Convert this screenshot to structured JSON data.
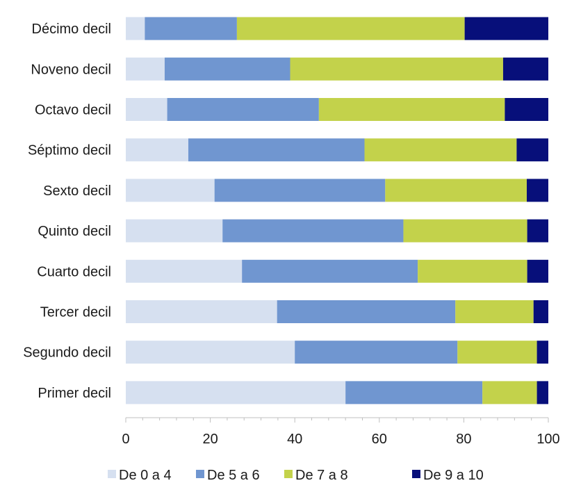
{
  "chart_data": {
    "type": "bar",
    "orientation": "horizontal",
    "stacked": true,
    "categories": [
      "Décimo decil",
      "Noveno decil",
      "Octavo decil",
      "Séptimo decil",
      "Sexto decil",
      "Quinto decil",
      "Cuarto decil",
      "Tercer decil",
      "Segundo decil",
      "Primer decil"
    ],
    "series": [
      {
        "name": "De 0 a 4",
        "color": "#d6e0f0",
        "values": [
          4.5,
          9.2,
          9.8,
          14.8,
          21.0,
          22.9,
          27.5,
          35.8,
          40.0,
          52.0
        ]
      },
      {
        "name": "De 5 a 6",
        "color": "#7096d0",
        "values": [
          21.8,
          29.7,
          35.9,
          41.7,
          40.4,
          42.8,
          41.6,
          42.2,
          38.5,
          32.4
        ]
      },
      {
        "name": "De 7 a 8",
        "color": "#c3d24b",
        "values": [
          53.9,
          50.4,
          44.0,
          36.0,
          33.5,
          29.3,
          25.9,
          18.5,
          18.8,
          12.9
        ]
      },
      {
        "name": "De 9 a 10",
        "color": "#070f7a",
        "values": [
          19.8,
          10.7,
          10.3,
          7.5,
          5.1,
          5.0,
          5.0,
          3.5,
          2.7,
          2.7
        ]
      }
    ],
    "xlim": [
      0,
      100
    ],
    "xticks": [
      "0",
      "20",
      "40",
      "60",
      "80",
      "100"
    ],
    "grid": false,
    "legend": "bottom"
  }
}
